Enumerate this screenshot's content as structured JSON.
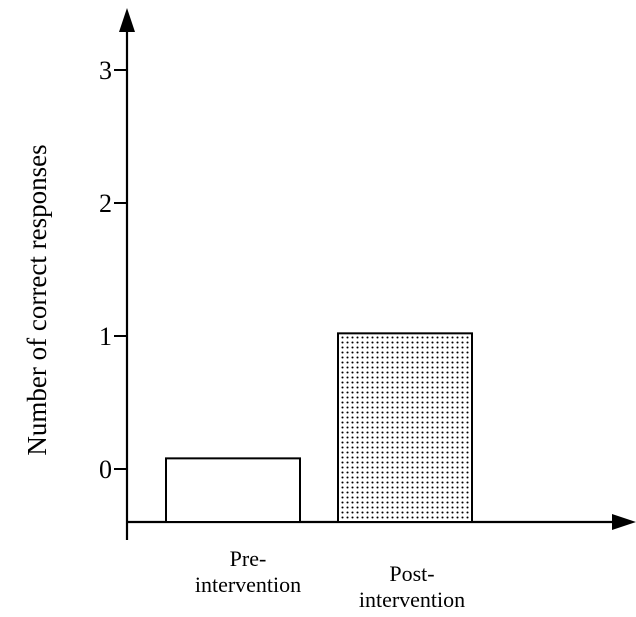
{
  "chart_data": {
    "type": "bar",
    "categories": [
      [
        "Pre-",
        "intervention"
      ],
      [
        "Post-",
        "intervention"
      ]
    ],
    "values": [
      0.08,
      1.02
    ],
    "xlabel": "",
    "ylabel": "Number of correct responses",
    "y_ticks": [
      "0",
      "1",
      "2",
      "3"
    ],
    "grid": false,
    "bar_fills": [
      "white",
      "dotted"
    ]
  }
}
